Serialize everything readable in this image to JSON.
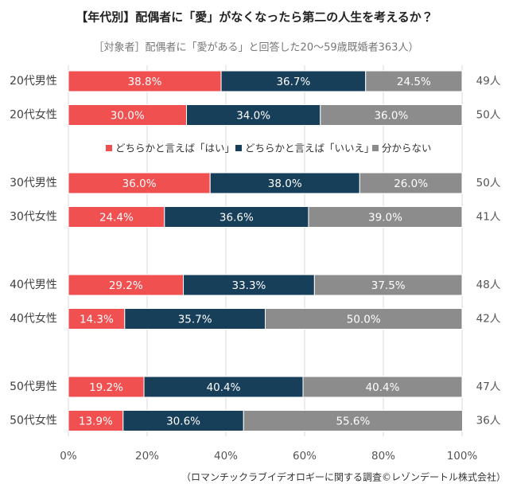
{
  "chart_data": {
    "type": "stacked-bar-horizontal",
    "title": "【年代別】配偶者に「愛」がなくなったら第二の人生を考えるか？",
    "subtitle": "［対象者］配偶者に「愛がある」と回答した20～59歳既婚者363人）",
    "footnote": "（ロマンチックラブイデオロギーに関する調査©レゾンデートル株式会社）",
    "categories": [
      "20代男性",
      "20代女性",
      "30代男性",
      "30代女性",
      "40代男性",
      "40代女性",
      "50代男性",
      "50代女性"
    ],
    "counts": [
      "49人",
      "50人",
      "50人",
      "41人",
      "48人",
      "42人",
      "47人",
      "36人"
    ],
    "series": [
      {
        "name": "どちらかと言えば「はい」",
        "color": "#f05050",
        "values": [
          38.8,
          30.0,
          36.0,
          24.4,
          29.2,
          14.3,
          19.2,
          13.9
        ],
        "value_labels": [
          "38.8%",
          "30.0%",
          "36.0%",
          "24.4%",
          "29.2%",
          "14.3%",
          "19.2%",
          "13.9%"
        ]
      },
      {
        "name": "どちらかと言えば「いいえ」",
        "color": "#173f5a",
        "values": [
          36.7,
          34.0,
          38.0,
          36.6,
          33.3,
          35.7,
          40.4,
          30.6
        ],
        "value_labels": [
          "36.7%",
          "34.0%",
          "38.0%",
          "36.6%",
          "33.3%",
          "35.7%",
          "40.4%",
          "30.6%"
        ]
      },
      {
        "name": "分からない",
        "color": "#8c8c8c",
        "values": [
          24.5,
          36.0,
          26.0,
          39.0,
          37.5,
          50.0,
          40.4,
          55.6
        ],
        "value_labels": [
          "24.5%",
          "36.0%",
          "26.0%",
          "39.0%",
          "37.5%",
          "50.0%",
          "40.4%",
          "55.6%"
        ]
      }
    ],
    "xlim": [
      0,
      100
    ],
    "xticks": [
      {
        "value": 0,
        "label": "0%"
      },
      {
        "value": 20,
        "label": "20%"
      },
      {
        "value": 40,
        "label": "40%"
      },
      {
        "value": 60,
        "label": "60%"
      },
      {
        "value": 80,
        "label": "80%"
      },
      {
        "value": 100,
        "label": "100%"
      }
    ],
    "grid": true
  }
}
